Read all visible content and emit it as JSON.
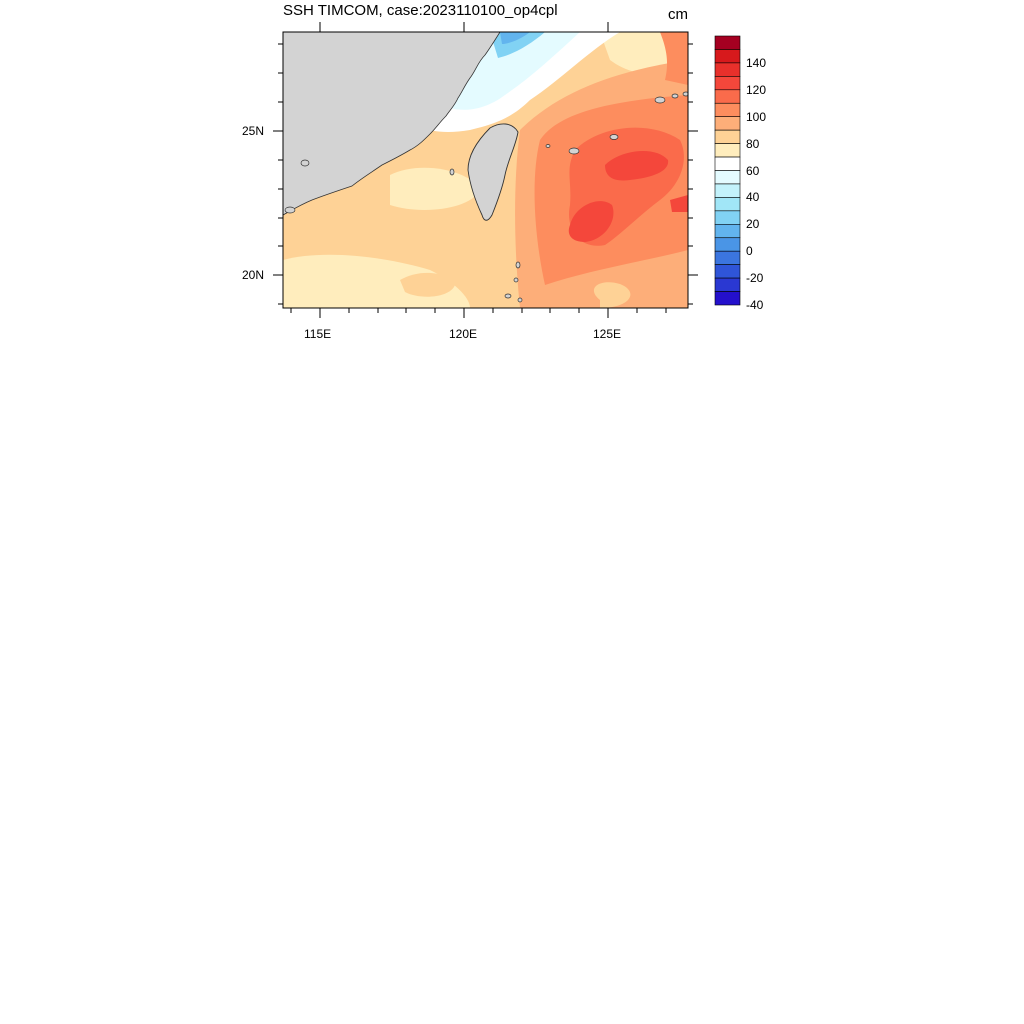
{
  "map": {
    "title": "SSH TIMCOM, case:2023110100_op4cpl",
    "units": "cm",
    "lon_labels": [
      "115E",
      "120E",
      "125E"
    ],
    "lat_labels": [
      "25N",
      "20N"
    ],
    "land_color": "#d3d3d3"
  },
  "colorbar": {
    "labels": [
      "140",
      "120",
      "100",
      "80",
      "60",
      "40",
      "20",
      "0",
      "-20",
      "-40"
    ],
    "colors": [
      "#a50021",
      "#d7191c",
      "#e8302b",
      "#f4473b",
      "#fa6b4b",
      "#fd8d5e",
      "#fdae79",
      "#fed296",
      "#ffedbd",
      "#ffffff",
      "#e4fbff",
      "#c3f2fb",
      "#a1e6f7",
      "#81d2f4",
      "#62b4ee",
      "#4a95e6",
      "#3b75df",
      "#2f55d8",
      "#2a38d2",
      "#2410cc"
    ]
  }
}
